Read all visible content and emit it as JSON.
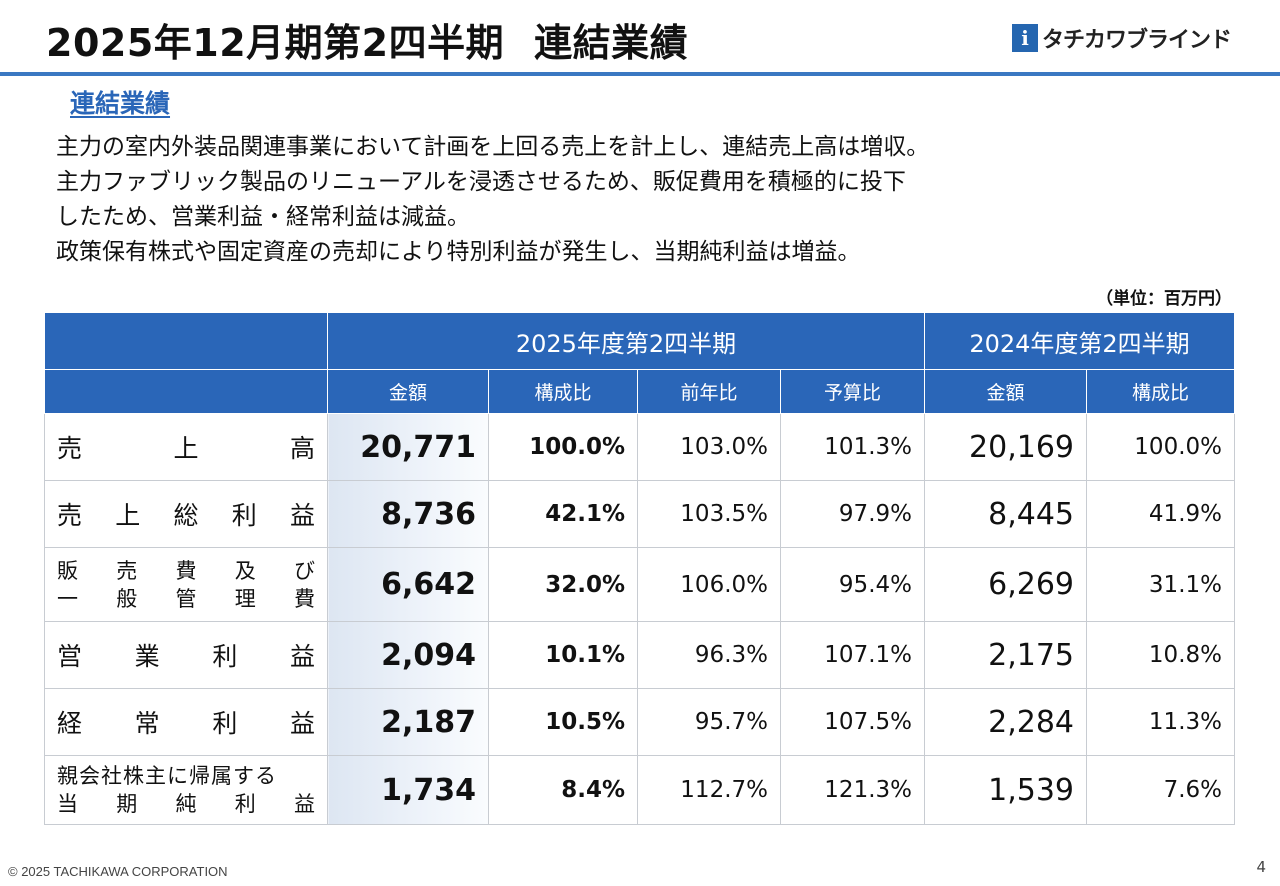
{
  "header": {
    "title_left": "2025年12月期第2四半期",
    "title_right": "連結業績",
    "logo_mark": "i",
    "logo_text": "タチカワブラインド"
  },
  "section_title": "連結業績",
  "body_lines": [
    "主力の室内外装品関連事業において計画を上回る売上を計上し、連結売上高は増収。",
    "主力ファブリック製品のリニューアルを浸透させるため、販促費用を積極的に投下",
    "したため、営業利益・経常利益は減益。",
    "政策保有株式や固定資産の売却により特別利益が発生し、当期純利益は増益。"
  ],
  "unit_note": "（単位：百万円）",
  "table": {
    "period_current": "2025年度第2四半期",
    "period_prior": "2024年度第2四半期",
    "sub_headers": [
      "金額",
      "構成比",
      "前年比",
      "予算比",
      "金額",
      "構成比"
    ],
    "rows": [
      {
        "label_chars": [
          "売",
          "上",
          "高"
        ],
        "amount": "20,771",
        "ratio": "100.0%",
        "yoy": "103.0%",
        "vs_budget": "101.3%",
        "prior_amount": "20,169",
        "prior_ratio": "100.0%"
      },
      {
        "label_chars": [
          "売",
          "上",
          "総",
          "利",
          "益"
        ],
        "amount": "8,736",
        "ratio": "42.1%",
        "yoy": "103.5%",
        "vs_budget": "97.9%",
        "prior_amount": "8,445",
        "prior_ratio": "41.9%"
      },
      {
        "label_line1": [
          "販",
          "売",
          "費",
          "及",
          "び"
        ],
        "label_line2": [
          "一",
          "般",
          "管",
          "理",
          "費"
        ],
        "amount": "6,642",
        "ratio": "32.0%",
        "yoy": "106.0%",
        "vs_budget": "95.4%",
        "prior_amount": "6,269",
        "prior_ratio": "31.1%"
      },
      {
        "label_chars": [
          "営",
          "業",
          "利",
          "益"
        ],
        "amount": "2,094",
        "ratio": "10.1%",
        "yoy": "96.3%",
        "vs_budget": "107.1%",
        "prior_amount": "2,175",
        "prior_ratio": "10.8%"
      },
      {
        "label_chars": [
          "経",
          "常",
          "利",
          "益"
        ],
        "amount": "2,187",
        "ratio": "10.5%",
        "yoy": "95.7%",
        "vs_budget": "107.5%",
        "prior_amount": "2,284",
        "prior_ratio": "11.3%"
      },
      {
        "label_line1_text": "親会社株主に帰属する",
        "label_line2": [
          "当",
          "期",
          "純",
          "利",
          "益"
        ],
        "amount": "1,734",
        "ratio": "8.4%",
        "yoy": "112.7%",
        "vs_budget": "121.3%",
        "prior_amount": "1,539",
        "prior_ratio": "7.6%"
      }
    ]
  },
  "footer": {
    "copyright": "© 2025 TACHIKAWA CORPORATION",
    "page_number": "4"
  },
  "colors": {
    "accent_blue": "#2a66b8",
    "rule_blue": "#3a78c2"
  }
}
